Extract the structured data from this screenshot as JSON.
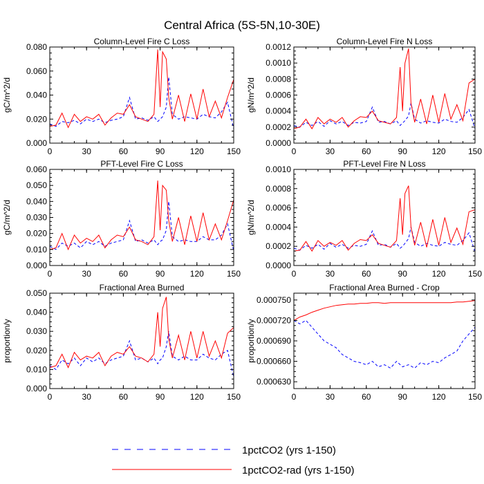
{
  "figure": {
    "title": "Central Africa (5S-5N,10-30E)"
  },
  "legend": {
    "entries": [
      {
        "label": "1pctCO2 (yrs 1-150)",
        "color": "#0000ff",
        "dash": "dashed"
      },
      {
        "label": "1pctCO2-rad (yrs 1-150)",
        "color": "#ff0000",
        "dash": "solid"
      }
    ]
  },
  "chart_data": [
    {
      "type": "line",
      "title": "Column-Level Fire C Loss",
      "ylabel": "gC/m^2/d",
      "xlim": [
        0,
        150
      ],
      "ylim": [
        0,
        0.08
      ],
      "xticks": [
        "0",
        "30",
        "60",
        "90",
        "120",
        "150"
      ],
      "yticks": [
        "0.000",
        "0.020",
        "0.040",
        "0.060",
        "0.080"
      ],
      "ytick_values": [
        0,
        0.02,
        0.04,
        0.06,
        0.08
      ],
      "x": [
        0,
        5,
        10,
        15,
        20,
        25,
        30,
        35,
        40,
        45,
        50,
        55,
        60,
        65,
        70,
        75,
        80,
        85,
        88,
        90,
        92,
        95,
        97,
        100,
        105,
        110,
        115,
        120,
        125,
        130,
        135,
        140,
        145,
        150
      ],
      "series": [
        {
          "name": "1pctCO2 (yrs 1-150)",
          "color": "#0000ff",
          "dash": "dashed",
          "values": [
            0.016,
            0.014,
            0.018,
            0.017,
            0.019,
            0.016,
            0.02,
            0.018,
            0.02,
            0.017,
            0.019,
            0.02,
            0.022,
            0.038,
            0.02,
            0.021,
            0.019,
            0.022,
            0.018,
            0.02,
            0.022,
            0.03,
            0.055,
            0.024,
            0.02,
            0.022,
            0.021,
            0.02,
            0.024,
            0.022,
            0.021,
            0.026,
            0.034,
            0.012
          ]
        },
        {
          "name": "1pctCO2-rad (yrs 1-150)",
          "color": "#ff0000",
          "dash": "solid",
          "values": [
            0.014,
            0.015,
            0.025,
            0.013,
            0.024,
            0.018,
            0.022,
            0.02,
            0.024,
            0.015,
            0.021,
            0.025,
            0.024,
            0.032,
            0.022,
            0.02,
            0.018,
            0.024,
            0.078,
            0.03,
            0.076,
            0.07,
            0.038,
            0.02,
            0.04,
            0.018,
            0.041,
            0.02,
            0.045,
            0.022,
            0.035,
            0.021,
            0.038,
            0.053
          ]
        }
      ]
    },
    {
      "type": "line",
      "title": "Column-Level Fire N Loss",
      "ylabel": "gN/m^2/d",
      "xlim": [
        0,
        150
      ],
      "ylim": [
        0,
        0.0012
      ],
      "xticks": [
        "0",
        "30",
        "60",
        "90",
        "120",
        "150"
      ],
      "yticks": [
        "0.0000",
        "0.0002",
        "0.0004",
        "0.0006",
        "0.0008",
        "0.0010",
        "0.0012"
      ],
      "ytick_values": [
        0,
        0.0002,
        0.0004,
        0.0006,
        0.0008,
        0.001,
        0.0012
      ],
      "x": [
        0,
        5,
        10,
        15,
        20,
        25,
        30,
        35,
        40,
        45,
        50,
        55,
        60,
        65,
        70,
        75,
        80,
        85,
        88,
        90,
        92,
        95,
        97,
        100,
        105,
        110,
        115,
        120,
        125,
        130,
        135,
        140,
        145,
        150
      ],
      "series": [
        {
          "name": "1pctCO2 (yrs 1-150)",
          "color": "#0000ff",
          "dash": "dashed",
          "values": [
            0.00022,
            0.0002,
            0.00026,
            0.00022,
            0.00027,
            0.00021,
            0.00028,
            0.00024,
            0.00027,
            0.00022,
            0.00026,
            0.00025,
            0.00027,
            0.00045,
            0.00026,
            0.00027,
            0.00024,
            0.00028,
            0.00022,
            0.00025,
            0.00028,
            0.00034,
            0.0005,
            0.0003,
            0.00025,
            0.00028,
            0.00026,
            0.00025,
            0.0003,
            0.00027,
            0.00026,
            0.00032,
            0.00042,
            0.00018
          ]
        },
        {
          "name": "1pctCO2-rad (yrs 1-150)",
          "color": "#ff0000",
          "dash": "solid",
          "values": [
            0.00018,
            0.0002,
            0.0003,
            0.00018,
            0.00032,
            0.00024,
            0.0003,
            0.00026,
            0.00032,
            0.0002,
            0.00028,
            0.00033,
            0.00032,
            0.0004,
            0.00028,
            0.00026,
            0.00024,
            0.00032,
            0.00095,
            0.0004,
            0.001,
            0.00118,
            0.0005,
            0.00026,
            0.00055,
            0.00024,
            0.0006,
            0.00026,
            0.00062,
            0.0003,
            0.00048,
            0.00028,
            0.00075,
            0.0008
          ]
        }
      ]
    },
    {
      "type": "line",
      "title": "PFT-Level Fire C Loss",
      "ylabel": "gC/m^2/d",
      "xlim": [
        0,
        150
      ],
      "ylim": [
        0,
        0.06
      ],
      "xticks": [
        "0",
        "30",
        "60",
        "90",
        "120",
        "150"
      ],
      "yticks": [
        "0.000",
        "0.010",
        "0.020",
        "0.030",
        "0.040",
        "0.050",
        "0.060"
      ],
      "ytick_values": [
        0,
        0.01,
        0.02,
        0.03,
        0.04,
        0.05,
        0.06
      ],
      "x": [
        0,
        5,
        10,
        15,
        20,
        25,
        30,
        35,
        40,
        45,
        50,
        55,
        60,
        65,
        70,
        75,
        80,
        85,
        88,
        90,
        92,
        95,
        97,
        100,
        105,
        110,
        115,
        120,
        125,
        130,
        135,
        140,
        145,
        150
      ],
      "series": [
        {
          "name": "1pctCO2 (yrs 1-150)",
          "color": "#0000ff",
          "dash": "dashed",
          "values": [
            0.012,
            0.01,
            0.014,
            0.012,
            0.014,
            0.011,
            0.015,
            0.013,
            0.015,
            0.012,
            0.014,
            0.015,
            0.016,
            0.028,
            0.015,
            0.016,
            0.014,
            0.016,
            0.013,
            0.015,
            0.016,
            0.022,
            0.04,
            0.018,
            0.015,
            0.016,
            0.015,
            0.015,
            0.018,
            0.016,
            0.016,
            0.019,
            0.026,
            0.009
          ]
        },
        {
          "name": "1pctCO2-rad (yrs 1-150)",
          "color": "#ff0000",
          "dash": "solid",
          "values": [
            0.01,
            0.011,
            0.02,
            0.01,
            0.019,
            0.014,
            0.017,
            0.015,
            0.019,
            0.011,
            0.016,
            0.019,
            0.018,
            0.024,
            0.016,
            0.015,
            0.013,
            0.018,
            0.053,
            0.022,
            0.05,
            0.047,
            0.028,
            0.015,
            0.03,
            0.013,
            0.031,
            0.015,
            0.033,
            0.016,
            0.026,
            0.016,
            0.028,
            0.041
          ]
        }
      ]
    },
    {
      "type": "line",
      "title": "PFT-Level Fire N Loss",
      "ylabel": "gN/m^2/d",
      "xlim": [
        0,
        150
      ],
      "ylim": [
        0,
        0.001
      ],
      "xticks": [
        "0",
        "30",
        "60",
        "90",
        "120",
        "150"
      ],
      "yticks": [
        "0.0000",
        "0.0002",
        "0.0004",
        "0.0006",
        "0.0008",
        "0.0010"
      ],
      "ytick_values": [
        0,
        0.0002,
        0.0004,
        0.0006,
        0.0008,
        0.001
      ],
      "x": [
        0,
        5,
        10,
        15,
        20,
        25,
        30,
        35,
        40,
        45,
        50,
        55,
        60,
        65,
        70,
        75,
        80,
        85,
        88,
        90,
        92,
        95,
        97,
        100,
        105,
        110,
        115,
        120,
        125,
        130,
        135,
        140,
        145,
        150
      ],
      "series": [
        {
          "name": "1pctCO2 (yrs 1-150)",
          "color": "#0000ff",
          "dash": "dashed",
          "values": [
            0.00018,
            0.00016,
            0.00021,
            0.00018,
            0.00022,
            0.00017,
            0.00023,
            0.00019,
            0.00022,
            0.00018,
            0.00021,
            0.0002,
            0.00022,
            0.00036,
            0.00021,
            0.00022,
            0.00019,
            0.00023,
            0.00018,
            0.0002,
            0.00023,
            0.00028,
            0.0004,
            0.00024,
            0.0002,
            0.00023,
            0.00021,
            0.0002,
            0.00024,
            0.00022,
            0.00021,
            0.00026,
            0.00034,
            0.00014
          ]
        },
        {
          "name": "1pctCO2-rad (yrs 1-150)",
          "color": "#ff0000",
          "dash": "solid",
          "values": [
            0.00015,
            0.00016,
            0.00025,
            0.00015,
            0.00026,
            0.0002,
            0.00024,
            0.00021,
            0.00026,
            0.00016,
            0.00023,
            0.00027,
            0.00026,
            0.00032,
            0.00023,
            0.00021,
            0.00019,
            0.00026,
            0.0007,
            0.00032,
            0.00075,
            0.00083,
            0.0004,
            0.00021,
            0.00045,
            0.00019,
            0.00048,
            0.00021,
            0.0005,
            0.00024,
            0.00039,
            0.00022,
            0.00056,
            0.00058
          ]
        }
      ]
    },
    {
      "type": "line",
      "title": "Fractional Area Burned",
      "ylabel": "proportion/y",
      "xlim": [
        0,
        150
      ],
      "ylim": [
        0,
        0.05
      ],
      "xticks": [
        "0",
        "30",
        "60",
        "90",
        "120",
        "150"
      ],
      "yticks": [
        "0.000",
        "0.010",
        "0.020",
        "0.030",
        "0.040",
        "0.050"
      ],
      "ytick_values": [
        0,
        0.01,
        0.02,
        0.03,
        0.04,
        0.05
      ],
      "x": [
        0,
        5,
        10,
        15,
        20,
        25,
        30,
        35,
        40,
        45,
        50,
        55,
        60,
        65,
        70,
        75,
        80,
        85,
        88,
        90,
        92,
        95,
        97,
        100,
        105,
        110,
        115,
        120,
        125,
        130,
        135,
        140,
        145,
        150
      ],
      "series": [
        {
          "name": "1pctCO2 (yrs 1-150)",
          "color": "#0000ff",
          "dash": "dashed",
          "values": [
            0.012,
            0.01,
            0.015,
            0.013,
            0.016,
            0.012,
            0.016,
            0.014,
            0.016,
            0.013,
            0.015,
            0.016,
            0.017,
            0.025,
            0.015,
            0.016,
            0.014,
            0.016,
            0.013,
            0.015,
            0.016,
            0.022,
            0.03,
            0.017,
            0.015,
            0.017,
            0.015,
            0.015,
            0.018,
            0.016,
            0.015,
            0.018,
            0.02,
            0.006
          ]
        },
        {
          "name": "1pctCO2-rad (yrs 1-150)",
          "color": "#ff0000",
          "dash": "solid",
          "values": [
            0.011,
            0.012,
            0.018,
            0.011,
            0.019,
            0.015,
            0.017,
            0.016,
            0.019,
            0.012,
            0.017,
            0.019,
            0.018,
            0.022,
            0.017,
            0.016,
            0.014,
            0.018,
            0.04,
            0.022,
            0.042,
            0.048,
            0.026,
            0.016,
            0.028,
            0.015,
            0.03,
            0.016,
            0.03,
            0.017,
            0.025,
            0.016,
            0.029,
            0.032
          ]
        }
      ]
    },
    {
      "type": "line",
      "title": "Fractional Area Burned - Crop",
      "ylabel": "proportion/y",
      "xlim": [
        0,
        150
      ],
      "ylim": [
        0.00062,
        0.00076
      ],
      "xticks": [
        "0",
        "30",
        "60",
        "90",
        "120",
        "150"
      ],
      "yticks": [
        "0.000630",
        "0.000660",
        "0.000690",
        "0.000720",
        "0.000750"
      ],
      "ytick_values": [
        0.00063,
        0.00066,
        0.00069,
        0.00072,
        0.00075
      ],
      "x": [
        0,
        5,
        10,
        15,
        20,
        25,
        30,
        35,
        40,
        45,
        50,
        55,
        60,
        65,
        70,
        75,
        80,
        85,
        90,
        95,
        100,
        105,
        110,
        115,
        120,
        125,
        130,
        135,
        140,
        145,
        150
      ],
      "series": [
        {
          "name": "1pctCO2 (yrs 1-150)",
          "color": "#0000ff",
          "dash": "dashed",
          "values": [
            0.00072,
            0.000715,
            0.00072,
            0.00071,
            0.0007,
            0.00069,
            0.000685,
            0.00068,
            0.00067,
            0.000665,
            0.00066,
            0.000658,
            0.000655,
            0.00066,
            0.000652,
            0.000655,
            0.00065,
            0.00066,
            0.000652,
            0.000655,
            0.00065,
            0.000658,
            0.000655,
            0.00066,
            0.000658,
            0.000665,
            0.00067,
            0.000675,
            0.00069,
            0.0007,
            0.00071
          ]
        },
        {
          "name": "1pctCO2-rad (yrs 1-150)",
          "color": "#ff0000",
          "dash": "solid",
          "values": [
            0.00072,
            0.000725,
            0.000728,
            0.000732,
            0.000735,
            0.000738,
            0.00074,
            0.000742,
            0.000743,
            0.000744,
            0.000744,
            0.000745,
            0.000745,
            0.000746,
            0.000746,
            0.000745,
            0.000746,
            0.000746,
            0.000746,
            0.000746,
            0.000746,
            0.000746,
            0.000746,
            0.000746,
            0.000746,
            0.000746,
            0.000746,
            0.000747,
            0.000747,
            0.000748,
            0.000749
          ]
        }
      ]
    }
  ]
}
